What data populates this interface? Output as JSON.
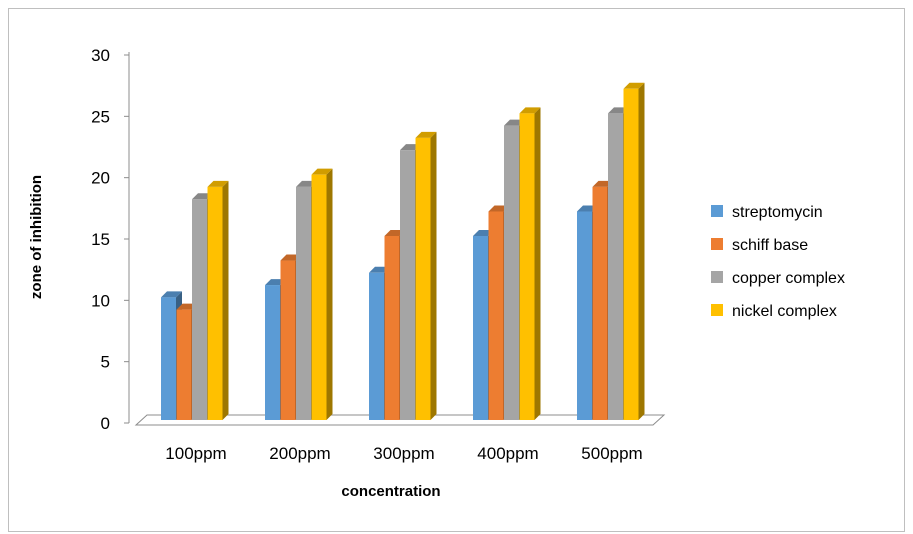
{
  "chart_data": {
    "type": "bar",
    "style": "3d-clustered-column",
    "title": "",
    "xlabel": "concentration",
    "ylabel": "zone of inhibition",
    "categories": [
      "100ppm",
      "200ppm",
      "300ppm",
      "400ppm",
      "500ppm"
    ],
    "series": [
      {
        "name": "streptomycin",
        "color": "#5b9bd5",
        "values": [
          10,
          11,
          12,
          15,
          17
        ]
      },
      {
        "name": "schiff base",
        "color": "#ed7d31",
        "values": [
          9,
          13,
          15,
          17,
          19
        ]
      },
      {
        "name": "copper complex",
        "color": "#a5a5a5",
        "values": [
          18,
          19,
          22,
          24,
          25
        ]
      },
      {
        "name": "nickel complex",
        "color": "#ffc000",
        "values": [
          19,
          20,
          23,
          25,
          27
        ]
      }
    ],
    "ylim": [
      0,
      30
    ],
    "yticks": [
      0,
      5,
      10,
      15,
      20,
      25,
      30
    ],
    "grid": false,
    "legend": "right"
  }
}
